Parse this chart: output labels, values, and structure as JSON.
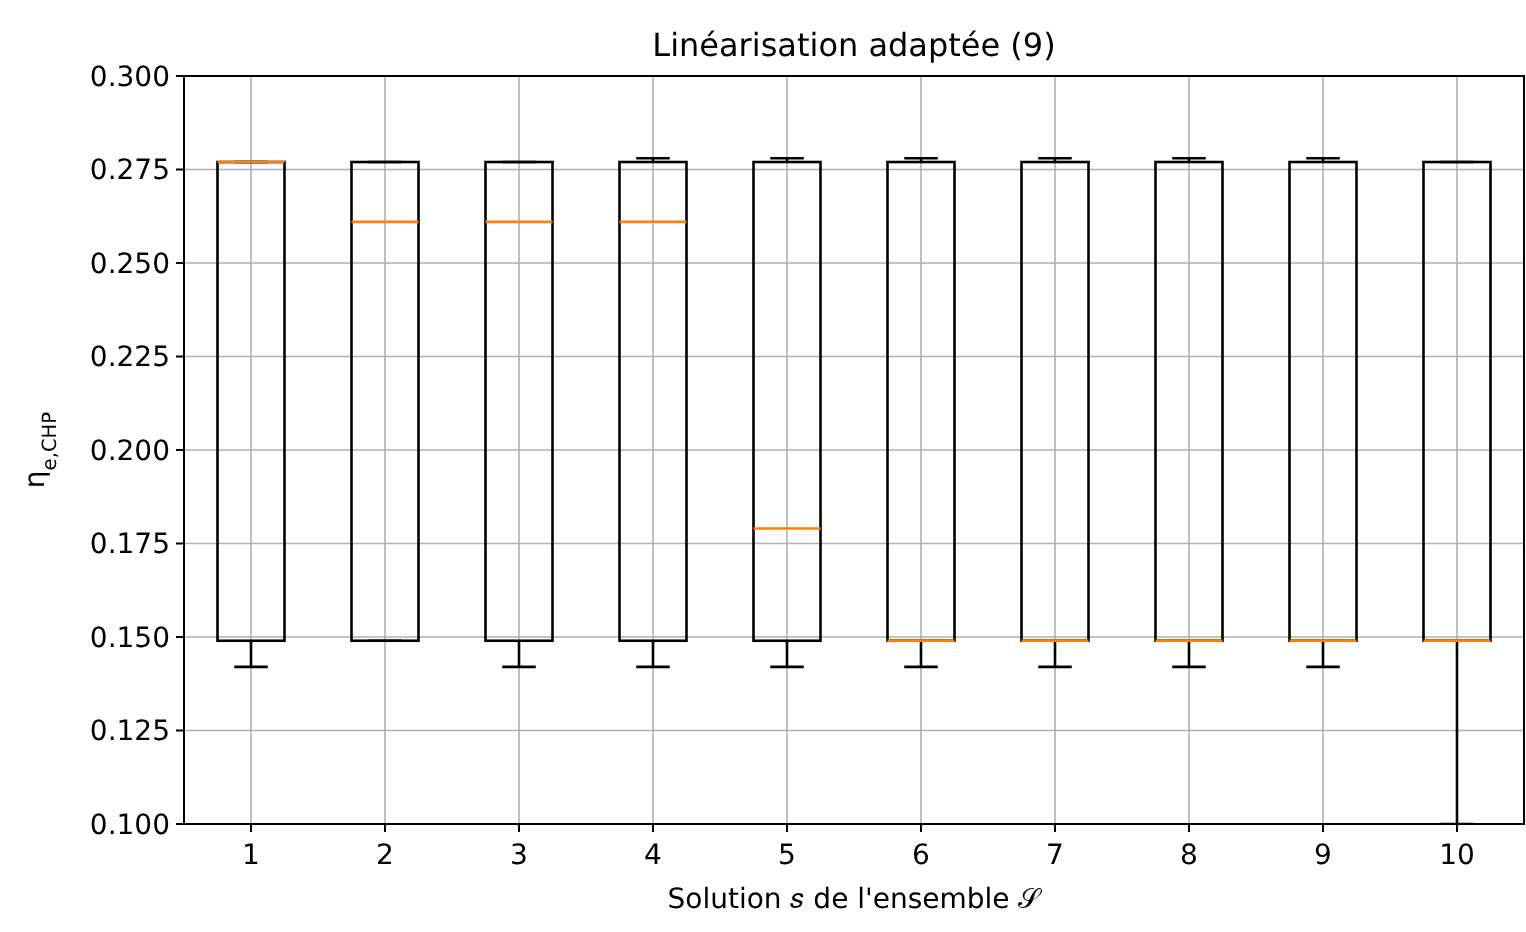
{
  "chart_data": {
    "type": "box",
    "title": "Linéarisation adaptée (9)",
    "xlabel": "Solution 𝑠 de l'ensemble 𝒮",
    "ylabel": "η$_{e,CHP}$",
    "categories": [
      "1",
      "2",
      "3",
      "4",
      "5",
      "6",
      "7",
      "8",
      "9",
      "10"
    ],
    "boxes": [
      {
        "low": 0.142,
        "q1": 0.149,
        "median": 0.277,
        "q3": 0.277,
        "high": 0.277
      },
      {
        "low": 0.149,
        "q1": 0.149,
        "median": 0.261,
        "q3": 0.277,
        "high": 0.277
      },
      {
        "low": 0.142,
        "q1": 0.149,
        "median": 0.261,
        "q3": 0.277,
        "high": 0.277
      },
      {
        "low": 0.142,
        "q1": 0.149,
        "median": 0.261,
        "q3": 0.277,
        "high": 0.278
      },
      {
        "low": 0.142,
        "q1": 0.149,
        "median": 0.179,
        "q3": 0.277,
        "high": 0.278
      },
      {
        "low": 0.142,
        "q1": 0.149,
        "median": 0.149,
        "q3": 0.277,
        "high": 0.278
      },
      {
        "low": 0.142,
        "q1": 0.149,
        "median": 0.149,
        "q3": 0.277,
        "high": 0.278
      },
      {
        "low": 0.142,
        "q1": 0.149,
        "median": 0.149,
        "q3": 0.277,
        "high": 0.278
      },
      {
        "low": 0.142,
        "q1": 0.149,
        "median": 0.149,
        "q3": 0.277,
        "high": 0.278
      },
      {
        "low": 0.1,
        "q1": 0.149,
        "median": 0.149,
        "q3": 0.277,
        "high": 0.277
      }
    ],
    "ylim": [
      0.1,
      0.3
    ],
    "yticks": [
      {
        "value": 0.1,
        "label": "0.100"
      },
      {
        "value": 0.125,
        "label": "0.125"
      },
      {
        "value": 0.15,
        "label": "0.150"
      },
      {
        "value": 0.175,
        "label": "0.175"
      },
      {
        "value": 0.2,
        "label": "0.200"
      },
      {
        "value": 0.225,
        "label": "0.225"
      },
      {
        "value": 0.25,
        "label": "0.250"
      },
      {
        "value": 0.275,
        "label": "0.275"
      },
      {
        "value": 0.3,
        "label": "0.300"
      }
    ],
    "grid": true
  }
}
